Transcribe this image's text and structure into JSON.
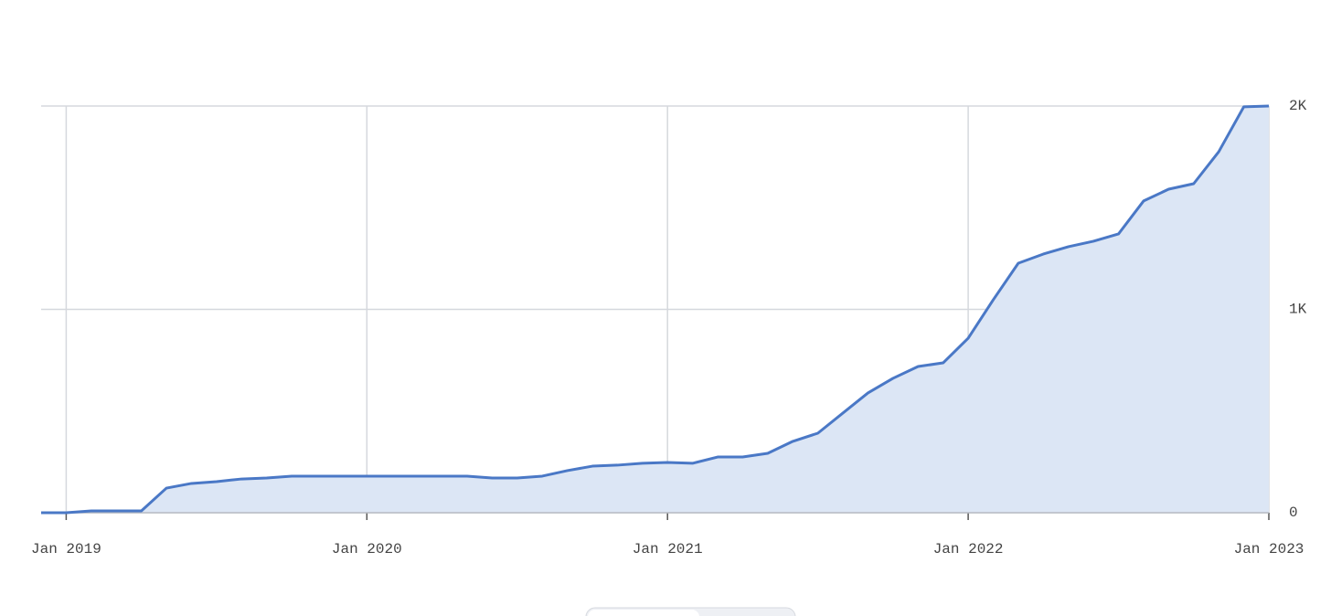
{
  "chart_data": {
    "type": "area",
    "x": [
      "2018-12",
      "2019-01",
      "2019-02",
      "2019-03",
      "2019-04",
      "2019-05",
      "2019-06",
      "2019-07",
      "2019-08",
      "2019-09",
      "2019-10",
      "2019-11",
      "2019-12",
      "2020-01",
      "2020-02",
      "2020-03",
      "2020-04",
      "2020-05",
      "2020-06",
      "2020-07",
      "2020-08",
      "2020-09",
      "2020-10",
      "2020-11",
      "2020-12",
      "2021-01",
      "2021-02",
      "2021-03",
      "2021-04",
      "2021-05",
      "2021-06",
      "2021-07",
      "2021-08",
      "2021-09",
      "2021-10",
      "2021-11",
      "2021-12",
      "2022-01",
      "2022-02",
      "2022-03",
      "2022-04",
      "2022-05",
      "2022-06",
      "2022-07",
      "2022-08",
      "2022-09",
      "2022-10",
      "2022-11",
      "2022-12",
      "2023-01"
    ],
    "series": [
      {
        "color": "#4a78c6",
        "fill": "#dce6f5",
        "values": [
          0,
          0,
          9,
          9,
          9,
          121,
          144,
          153,
          166,
          171,
          180,
          180,
          180,
          180,
          180,
          180,
          180,
          180,
          171,
          171,
          180,
          207,
          229,
          234,
          243,
          247,
          243,
          274,
          274,
          292,
          351,
          391,
          490,
          589,
          661,
          719,
          737,
          858,
          1047,
          1227,
          1272,
          1308,
          1335,
          1371,
          1533,
          1591,
          1618,
          1775,
          1996,
          2000
        ]
      }
    ],
    "xlim": [
      "2018-12",
      "2023-01"
    ],
    "xticks": [
      {
        "value": "2019-01",
        "label": "Jan 2019"
      },
      {
        "value": "2020-01",
        "label": "Jan 2020"
      },
      {
        "value": "2021-01",
        "label": "Jan 2021"
      },
      {
        "value": "2022-01",
        "label": "Jan 2022"
      },
      {
        "value": "2023-01",
        "label": "Jan 2023"
      }
    ],
    "ylim": [
      0,
      2000
    ],
    "yticks": [
      0,
      {
        "value": 1000,
        "label": "1K"
      },
      {
        "value": 2000,
        "label": "2K"
      }
    ],
    "grid": true,
    "y_axis_side": "right"
  }
}
